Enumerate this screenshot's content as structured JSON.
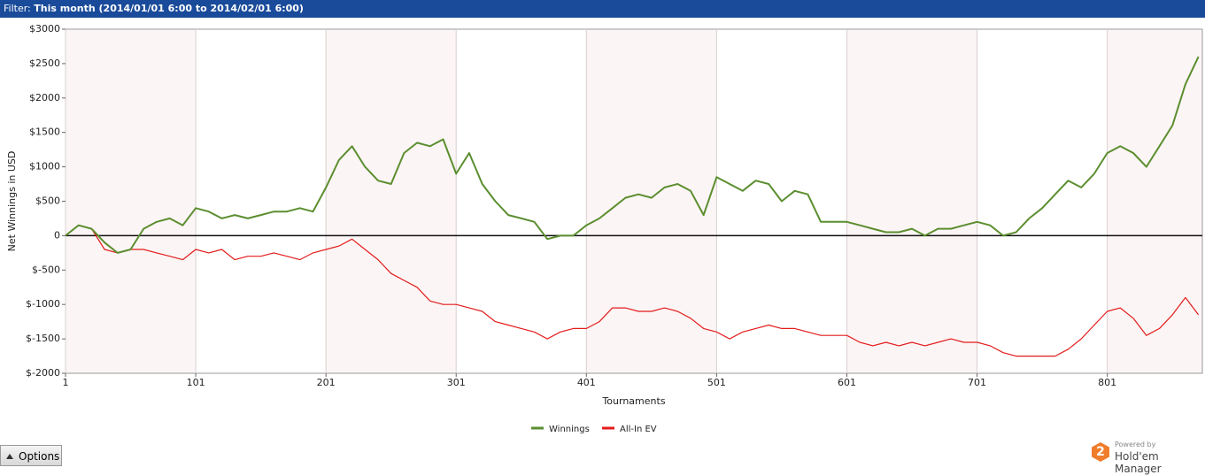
{
  "header": {
    "filter_label": "Filter:",
    "filter_text": "This month (2014/01/01 6:00 to 2014/02/01 6:00)"
  },
  "ui": {
    "options": "Options",
    "powered": "Powered by",
    "brand": "Hold'em Manager",
    "logo": "2"
  },
  "chart_data": {
    "type": "line",
    "ylabel": "Net Winnings in USD",
    "xlabel": "Tournaments",
    "xlim": [
      1,
      874
    ],
    "xticks": [
      1,
      101,
      201,
      301,
      401,
      501,
      601,
      701,
      801
    ],
    "ylim": [
      -2000,
      3000
    ],
    "yticks": [
      {
        "value": 3000,
        "label": "$3000"
      },
      {
        "value": 2500,
        "label": "$2500"
      },
      {
        "value": 2000,
        "label": "$2000"
      },
      {
        "value": 1500,
        "label": "$1500"
      },
      {
        "value": 1000,
        "label": "$1000"
      },
      {
        "value": 500,
        "label": "$500"
      },
      0,
      {
        "value": -500,
        "label": "$-500"
      },
      {
        "value": -1000,
        "label": "$-1000"
      },
      {
        "value": -1500,
        "label": "$-1500"
      },
      {
        "value": -2000,
        "label": "$-2000"
      }
    ],
    "grid": "x",
    "x": [
      1,
      11,
      21,
      31,
      41,
      51,
      61,
      71,
      81,
      91,
      101,
      111,
      121,
      131,
      141,
      151,
      161,
      171,
      181,
      191,
      201,
      211,
      221,
      231,
      241,
      251,
      261,
      271,
      281,
      291,
      301,
      311,
      321,
      331,
      341,
      351,
      361,
      371,
      381,
      391,
      401,
      411,
      421,
      431,
      441,
      451,
      461,
      471,
      481,
      491,
      501,
      511,
      521,
      531,
      541,
      551,
      561,
      571,
      581,
      591,
      601,
      611,
      621,
      631,
      641,
      651,
      661,
      671,
      681,
      691,
      701,
      711,
      721,
      731,
      741,
      751,
      761,
      771,
      781,
      791,
      801,
      811,
      821,
      831,
      841,
      851,
      861,
      871
    ],
    "series": [
      {
        "name": "Winnings",
        "color": "#5b8e2f",
        "values": [
          0,
          150,
          100,
          -100,
          -250,
          -200,
          100,
          200,
          250,
          150,
          400,
          350,
          250,
          300,
          250,
          300,
          350,
          350,
          400,
          350,
          700,
          1100,
          1300,
          1000,
          800,
          750,
          1200,
          1350,
          1300,
          1400,
          900,
          1200,
          750,
          500,
          300,
          250,
          200,
          -50,
          0,
          0,
          150,
          250,
          400,
          550,
          600,
          550,
          700,
          750,
          650,
          300,
          850,
          750,
          650,
          800,
          750,
          500,
          650,
          600,
          200,
          200,
          200,
          150,
          100,
          50,
          50,
          100,
          0,
          100,
          100,
          150,
          200,
          150,
          0,
          50,
          250,
          400,
          600,
          800,
          700,
          900,
          1200,
          1300,
          1200,
          1000,
          1300,
          1600,
          2200,
          2600
        ]
      },
      {
        "name": "All-In EV",
        "color": "#e31b1b",
        "values": [
          0,
          150,
          100,
          -200,
          -250,
          -200,
          -200,
          -250,
          -300,
          -350,
          -200,
          -250,
          -200,
          -350,
          -300,
          -300,
          -250,
          -300,
          -350,
          -250,
          -200,
          -150,
          -50,
          -200,
          -350,
          -550,
          -650,
          -750,
          -950,
          -1000,
          -1000,
          -1050,
          -1100,
          -1250,
          -1300,
          -1350,
          -1400,
          -1500,
          -1400,
          -1350,
          -1350,
          -1250,
          -1050,
          -1050,
          -1100,
          -1100,
          -1050,
          -1100,
          -1200,
          -1350,
          -1400,
          -1500,
          -1400,
          -1350,
          -1300,
          -1350,
          -1350,
          -1400,
          -1450,
          -1450,
          -1450,
          -1550,
          -1600,
          -1550,
          -1600,
          -1550,
          -1600,
          -1550,
          -1500,
          -1550,
          -1550,
          -1600,
          -1700,
          -1750,
          -1750,
          -1750,
          -1750,
          -1650,
          -1500,
          -1300,
          -1100,
          -1050,
          -1200,
          -1450,
          -1350,
          -1150,
          -900,
          -1150
        ]
      }
    ]
  }
}
